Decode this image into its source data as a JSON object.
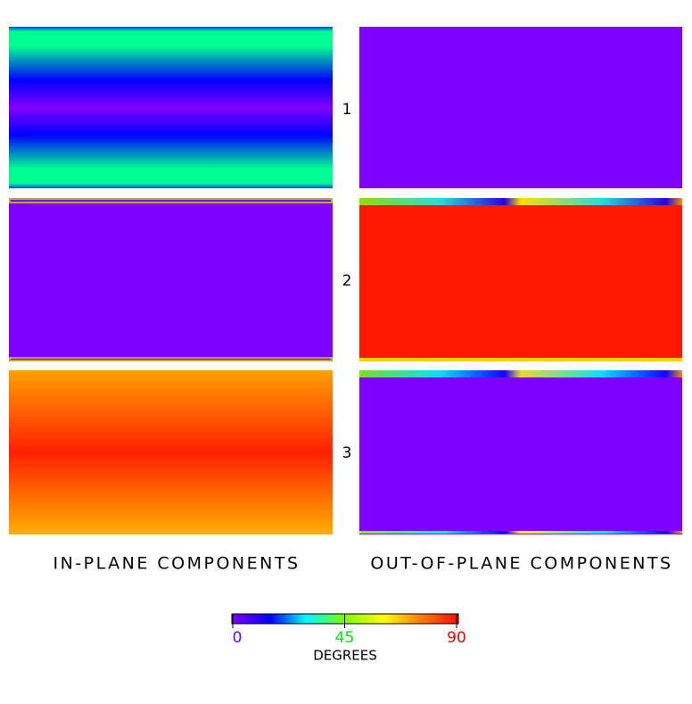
{
  "row_labels": [
    "1",
    "2",
    "3"
  ],
  "column_labels": [
    "IN-PLANE COMPONENTS",
    "OUT-OF-PLANE COMPONENTS"
  ],
  "colorbar": {
    "lim": [
      0,
      90
    ],
    "ticks": [
      0,
      45,
      90
    ],
    "label": "DEGREES"
  }
}
